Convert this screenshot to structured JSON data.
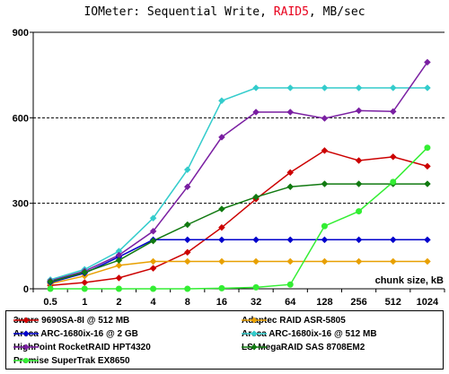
{
  "title": {
    "prefix": "IOMeter: Sequential Write, ",
    "accent": "RAID5",
    "suffix": ", MB/sec",
    "accent_color": "#e8001c"
  },
  "chart_data": {
    "type": "line",
    "xlabel": "chunk size, kB",
    "ylabel": "",
    "categories": [
      "0.5",
      "1",
      "2",
      "4",
      "8",
      "16",
      "32",
      "64",
      "128",
      "256",
      "512",
      "1024"
    ],
    "ylim": [
      0,
      900
    ],
    "yticks": [
      "0",
      "300",
      "600",
      "900"
    ],
    "grid": "dashed horizontal at 300 and 600",
    "legend_position": "bottom",
    "series": [
      {
        "name": "3ware 9690SA-8I @ 512 MB",
        "color": "#cc0000",
        "marker": "diamond",
        "values": [
          12,
          22,
          38,
          72,
          128,
          215,
          315,
          408,
          485,
          450,
          463,
          430
        ]
      },
      {
        "name": "Adaptec RAID ASR-5805",
        "color": "#e8a000",
        "marker": "diamond",
        "values": [
          18,
          45,
          82,
          96,
          96,
          96,
          96,
          96,
          96,
          96,
          96,
          96
        ]
      },
      {
        "name": "Areca ARC-1680ix-16 @ 2 GB",
        "color": "#0000cc",
        "marker": "diamond",
        "values": [
          22,
          55,
          112,
          172,
          172,
          172,
          172,
          172,
          172,
          172,
          172,
          172
        ]
      },
      {
        "name": "Areca ARC-1680ix-16 @ 512 MB",
        "color": "#33cccc",
        "marker": "diamond",
        "values": [
          32,
          68,
          132,
          248,
          418,
          660,
          705,
          705,
          705,
          705,
          705,
          705
        ]
      },
      {
        "name": "HighPoint RocketRAID HPT4320",
        "color": "#7a1fa2",
        "marker": "diamond",
        "values": [
          28,
          62,
          118,
          202,
          358,
          532,
          620,
          620,
          598,
          625,
          622,
          795
        ]
      },
      {
        "name": "LSI MegaRAID SAS 8708EM2",
        "color": "#117a11",
        "marker": "diamond",
        "values": [
          25,
          58,
          100,
          168,
          225,
          280,
          322,
          358,
          368,
          368,
          368,
          368
        ]
      },
      {
        "name": "Promise SuperTrak EX8650",
        "color": "#33ee33",
        "marker": "circle",
        "values": [
          0,
          0,
          0,
          0,
          0,
          2,
          5,
          15,
          220,
          272,
          375,
          495
        ]
      }
    ]
  }
}
